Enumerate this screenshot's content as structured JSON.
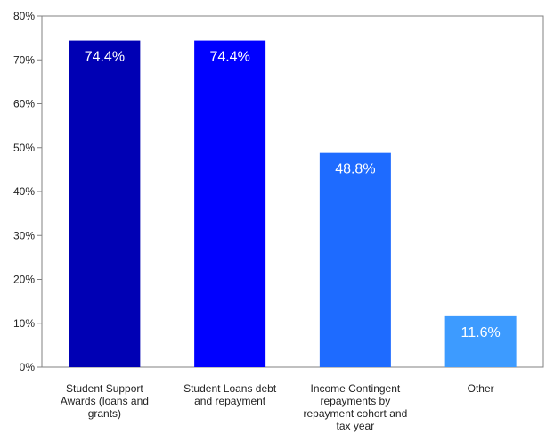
{
  "chart_data": {
    "type": "bar",
    "title": "",
    "xlabel": "",
    "ylabel": "",
    "categories": [
      [
        "Student Support",
        "Awards (loans and",
        "grants)"
      ],
      [
        "Student Loans debt",
        "and repayment"
      ],
      [
        "Income Contingent",
        "repayments by",
        "repayment cohort and",
        "tax year"
      ],
      [
        "Other"
      ]
    ],
    "values": [
      74.4,
      74.4,
      48.8,
      11.6
    ],
    "value_labels": [
      "74.4%",
      "74.4%",
      "48.8%",
      "11.6%"
    ],
    "bar_colors": [
      "#0000b4",
      "#0000ff",
      "#1e6bff",
      "#3d9bff"
    ],
    "ylim": [
      0,
      80
    ],
    "yticks": [
      0,
      10,
      20,
      30,
      40,
      50,
      60,
      70,
      80
    ],
    "ytick_labels": [
      "0%",
      "10%",
      "20%",
      "30%",
      "40%",
      "50%",
      "60%",
      "70%",
      "80%"
    ],
    "grid": false,
    "legend": "none"
  }
}
